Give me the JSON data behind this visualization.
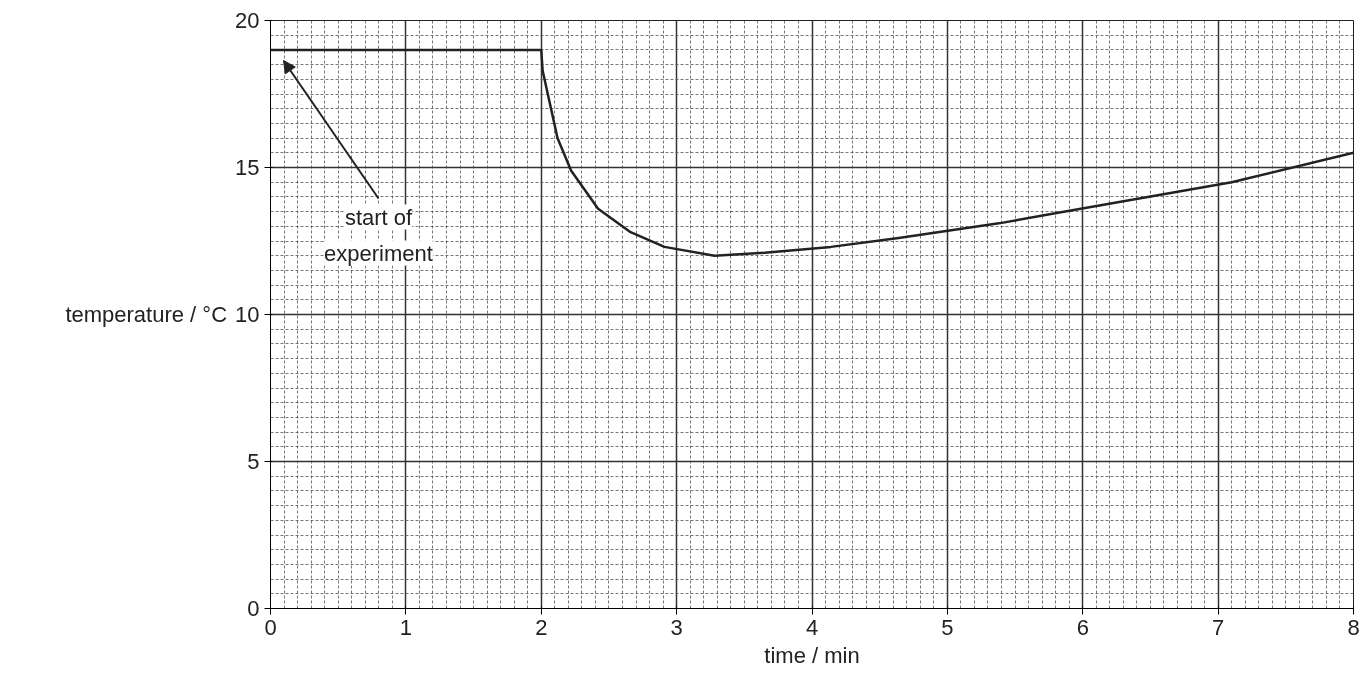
{
  "chart_data": {
    "type": "line",
    "xlabel": "time / min",
    "ylabel": "temperature / °C",
    "series": [
      {
        "color": "#222222",
        "x": [
          0,
          2,
          2.01,
          2.12,
          2.22,
          2.42,
          2.66,
          2.91,
          3.28,
          3.65,
          4.14,
          4.64,
          5.38,
          5.87,
          7.1,
          8.0
        ],
        "values": [
          19,
          19,
          18.3,
          16.0,
          14.9,
          13.6,
          12.8,
          12.3,
          12.0,
          12.1,
          12.3,
          12.6,
          13.1,
          13.5,
          14.5,
          15.5
        ]
      }
    ],
    "xlim": [
      0,
      8
    ],
    "ylim": [
      0,
      20
    ],
    "xticks": [
      0,
      1,
      2,
      3,
      4,
      5,
      6,
      7,
      8
    ],
    "yticks": [
      0,
      5,
      10,
      15,
      20
    ],
    "annotations": [
      "start of experiment"
    ],
    "grid": true,
    "marker": "none",
    "line_style": "solid"
  }
}
